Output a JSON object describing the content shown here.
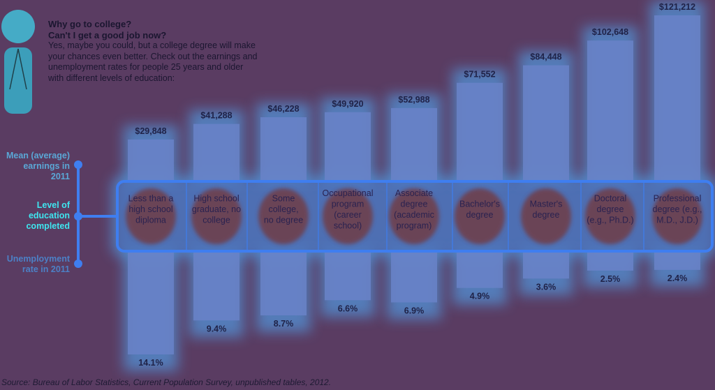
{
  "intro": {
    "question_line1": "Why go to college?",
    "question_line2": "Can't I get a good job now?",
    "body": "Yes, maybe you could, but a college degree will make your chances even better. Check out the earnings and unemployment rates for people 25 years and older with different levels of education:"
  },
  "row_labels": {
    "earnings": [
      "Mean (average)",
      "earnings in",
      "2011"
    ],
    "education": [
      "Level of",
      "education",
      "completed"
    ],
    "unemployment": [
      "Unemployment",
      "rate in 2011"
    ]
  },
  "source": "Source: Bureau of Labor Statistics, Current Population Survey, unpublished tables, 2012.",
  "colors": {
    "background": "#5a3c62",
    "bar": "#6a83c8",
    "glow": "#4fb0ff",
    "panel_border": "#3f7ef0",
    "label_blob": "#6e3f4d"
  },
  "chart_data": {
    "type": "bar",
    "categories": [
      [
        "Less than a",
        "high school",
        "diploma"
      ],
      [
        "High school",
        "graduate, no",
        "college"
      ],
      [
        "Some",
        "college,",
        "no degree"
      ],
      [
        "Occupational",
        "program",
        "(career",
        "school)"
      ],
      [
        "Associate",
        "degree",
        "(academic",
        "program)"
      ],
      [
        "Bachelor's",
        "degree"
      ],
      [
        "Master's",
        "degree"
      ],
      [
        "Doctoral",
        "degree",
        "(e.g., Ph.D.)"
      ],
      [
        "Professional",
        "degree (e.g.,",
        "M.D., J.D.)"
      ]
    ],
    "series": [
      {
        "values": [
          29848,
          41288,
          46228,
          49920,
          52988,
          71552,
          84448,
          102648,
          121212
        ],
        "labels": [
          "$29,848",
          "$41,288",
          "$46,228",
          "$49,920",
          "$52,988",
          "$71,552",
          "$84,448",
          "$102,648",
          "$121,212"
        ]
      },
      {
        "values": [
          14.1,
          9.4,
          8.7,
          6.6,
          6.9,
          4.9,
          3.6,
          2.5,
          2.4
        ],
        "labels": [
          "14.1%",
          "9.4%",
          "8.7%",
          "6.6%",
          "6.9%",
          "4.9%",
          "3.6%",
          "2.5%",
          "2.4%"
        ]
      }
    ]
  }
}
